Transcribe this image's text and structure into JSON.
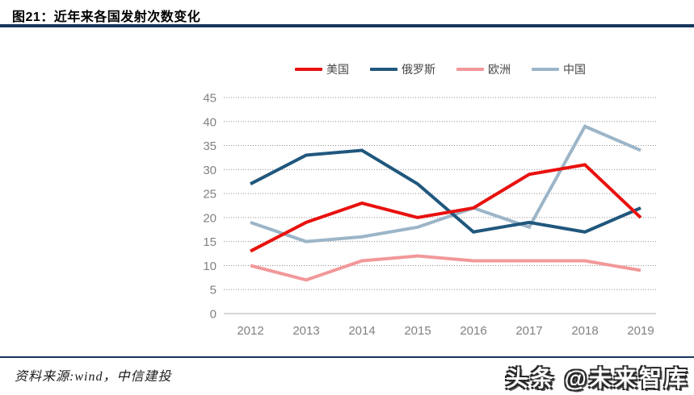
{
  "figure": {
    "title": "图21：近年来各国发射次数变化"
  },
  "source": {
    "text": "资料来源:wind，中信建投"
  },
  "watermark": {
    "text": "头条 @未来智库"
  },
  "colors": {
    "rule_navy": "#17375E",
    "usa_red": "#E8110E",
    "russia_blue": "#20577D",
    "europe_pink": "#F2989A",
    "china_lightblue": "#9CB5C8",
    "grid_gray": "#8f8f8f",
    "axis_gray": "#c8c8c8",
    "tick_gray": "#818181"
  },
  "chart_data": {
    "type": "line",
    "title": "近年来各国发射次数变化",
    "categories": [
      "2012",
      "2013",
      "2014",
      "2015",
      "2016",
      "2017",
      "2018",
      "2019"
    ],
    "series": [
      {
        "key": "usa",
        "name": "美国",
        "color": "#E8110E",
        "values": [
          13,
          19,
          23,
          20,
          22,
          29,
          31,
          20
        ]
      },
      {
        "key": "russia",
        "name": "俄罗斯",
        "color": "#20577D",
        "values": [
          27,
          33,
          34,
          27,
          17,
          19,
          17,
          22
        ]
      },
      {
        "key": "europe",
        "name": "欧洲",
        "color": "#F2989A",
        "values": [
          10,
          7,
          11,
          12,
          11,
          11,
          11,
          9
        ]
      },
      {
        "key": "china",
        "name": "中国",
        "color": "#9CB5C8",
        "values": [
          19,
          15,
          16,
          18,
          22,
          18,
          39,
          34
        ]
      }
    ],
    "xlabel": "",
    "ylabel": "",
    "ylim": [
      0,
      45
    ],
    "ytick_step": 5,
    "grid": "horizontal-dotted",
    "legend_position": "top-center"
  }
}
